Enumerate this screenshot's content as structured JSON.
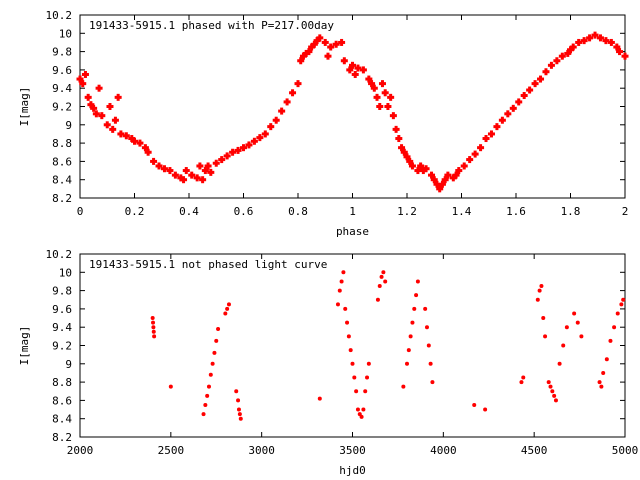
{
  "chart_data": [
    {
      "type": "scatter",
      "title": "191433-5915.1 phased with P=217.00day",
      "xlabel": "phase",
      "ylabel": "I[mag]",
      "xlim": [
        0,
        2
      ],
      "ylim": [
        10.2,
        8.2
      ],
      "y_inverted": true,
      "xticks": [
        0,
        0.2,
        0.4,
        0.6,
        0.8,
        1,
        1.2,
        1.4,
        1.6,
        1.8,
        2
      ],
      "xtick_labels": [
        "0",
        "0.2",
        "0.4",
        "0.6",
        "0.8",
        "1",
        "1.2",
        "1.4",
        "1.6",
        "1.8",
        "2"
      ],
      "yticks": [
        8.2,
        8.4,
        8.6,
        8.8,
        9,
        9.2,
        9.4,
        9.6,
        9.8,
        10,
        10.2
      ],
      "ytick_labels": [
        "8.2",
        "8.4",
        "8.6",
        "8.8",
        "9",
        "9.2",
        "9.4",
        "9.6",
        "9.8",
        "10",
        "10.2"
      ],
      "grid": false,
      "marker_color": "#ff0000",
      "marker": "plus-thick",
      "series": [
        {
          "x": [
            0.0,
            0.01,
            0.02,
            0.03,
            0.04,
            0.05,
            0.06,
            0.07,
            0.08,
            0.1,
            0.11,
            0.12,
            0.13,
            0.14,
            0.15,
            0.17,
            0.19,
            0.2,
            0.22,
            0.24,
            0.25,
            0.27,
            0.29,
            0.31,
            0.33,
            0.35,
            0.37,
            0.38,
            0.39,
            0.41,
            0.43,
            0.44,
            0.45,
            0.46,
            0.47,
            0.48,
            0.5,
            0.52,
            0.54,
            0.56,
            0.58,
            0.6,
            0.62,
            0.64,
            0.66,
            0.68,
            0.7,
            0.72,
            0.74,
            0.76,
            0.78,
            0.8,
            0.81,
            0.82,
            0.83,
            0.84,
            0.85,
            0.86,
            0.87,
            0.88,
            0.9,
            0.91,
            0.92,
            0.94,
            0.96,
            0.97,
            0.99,
            1.0,
            1.01,
            1.02,
            1.04,
            1.06,
            1.07,
            1.08,
            1.09,
            1.1,
            1.11,
            1.12,
            1.13,
            1.14,
            1.15,
            1.16,
            1.17,
            1.18,
            1.19,
            1.2,
            1.21,
            1.22,
            1.24,
            1.25,
            1.26,
            1.27,
            1.29,
            1.3,
            1.31,
            1.32,
            1.33,
            1.34,
            1.35,
            1.37,
            1.38,
            1.39,
            1.41,
            1.43,
            1.45,
            1.47,
            1.49,
            1.51,
            1.53,
            1.55,
            1.57,
            1.59,
            1.61,
            1.63,
            1.65,
            1.67,
            1.69,
            1.71,
            1.73,
            1.75,
            1.77,
            1.79,
            1.8,
            1.81,
            1.83,
            1.85,
            1.87,
            1.89,
            1.91,
            1.93,
            1.95,
            1.97,
            1.98,
            2.0
          ],
          "y": [
            9.5,
            9.45,
            9.55,
            9.3,
            9.22,
            9.18,
            9.12,
            9.4,
            9.1,
            9.0,
            9.2,
            8.95,
            9.05,
            9.3,
            8.9,
            8.88,
            8.85,
            8.82,
            8.8,
            8.75,
            8.7,
            8.6,
            8.55,
            8.52,
            8.5,
            8.45,
            8.42,
            8.4,
            8.5,
            8.45,
            8.42,
            8.55,
            8.4,
            8.5,
            8.55,
            8.48,
            8.58,
            8.62,
            8.66,
            8.7,
            8.72,
            8.75,
            8.78,
            8.82,
            8.86,
            8.9,
            8.98,
            9.05,
            9.15,
            9.25,
            9.35,
            9.45,
            9.7,
            9.75,
            9.78,
            9.8,
            9.85,
            9.88,
            9.92,
            9.95,
            9.9,
            9.75,
            9.85,
            9.88,
            9.9,
            9.7,
            9.6,
            9.65,
            9.55,
            9.62,
            9.6,
            9.5,
            9.45,
            9.4,
            9.3,
            9.2,
            9.45,
            9.35,
            9.2,
            9.3,
            9.1,
            8.95,
            8.85,
            8.75,
            8.7,
            8.65,
            8.6,
            8.55,
            8.5,
            8.55,
            8.5,
            8.52,
            8.45,
            8.4,
            8.35,
            8.3,
            8.35,
            8.4,
            8.45,
            8.42,
            8.45,
            8.5,
            8.55,
            8.62,
            8.68,
            8.75,
            8.85,
            8.9,
            8.98,
            9.05,
            9.12,
            9.18,
            9.25,
            9.32,
            9.38,
            9.45,
            9.5,
            9.58,
            9.65,
            9.7,
            9.75,
            9.78,
            9.82,
            9.85,
            9.9,
            9.92,
            9.95,
            9.98,
            9.95,
            9.92,
            9.9,
            9.85,
            9.8,
            9.75
          ]
        }
      ]
    },
    {
      "type": "scatter",
      "title": "191433-5915.1 not phased light curve",
      "xlabel": "hjd0",
      "ylabel": "I[mag]",
      "xlim": [
        2000,
        5000
      ],
      "ylim": [
        10.2,
        8.2
      ],
      "y_inverted": true,
      "xticks": [
        2000,
        2500,
        3000,
        3500,
        4000,
        4500,
        5000
      ],
      "xtick_labels": [
        "2000",
        "2500",
        "3000",
        "3500",
        "4000",
        "4500",
        "5000"
      ],
      "yticks": [
        8.2,
        8.4,
        8.6,
        8.8,
        9,
        9.2,
        9.4,
        9.6,
        9.8,
        10,
        10.2
      ],
      "ytick_labels": [
        "8.2",
        "8.4",
        "8.6",
        "8.8",
        "9",
        "9.2",
        "9.4",
        "9.6",
        "9.8",
        "10",
        "10.2"
      ],
      "grid": false,
      "marker_color": "#ff0000",
      "marker": "dot",
      "series": [
        {
          "x": [
            2400,
            2402,
            2404,
            2406,
            2408,
            2500,
            2680,
            2690,
            2700,
            2710,
            2720,
            2730,
            2740,
            2750,
            2760,
            2800,
            2810,
            2820,
            2860,
            2870,
            2875,
            2880,
            2885,
            3320,
            3420,
            3430,
            3440,
            3450,
            3460,
            3470,
            3480,
            3490,
            3500,
            3510,
            3520,
            3530,
            3540,
            3550,
            3560,
            3570,
            3580,
            3590,
            3640,
            3650,
            3660,
            3670,
            3680,
            3780,
            3800,
            3810,
            3820,
            3830,
            3840,
            3850,
            3860,
            3900,
            3910,
            3920,
            3930,
            3940,
            4170,
            4230,
            4430,
            4440,
            4520,
            4530,
            4540,
            4550,
            4560,
            4580,
            4590,
            4600,
            4610,
            4620,
            4640,
            4660,
            4680,
            4720,
            4740,
            4760,
            4860,
            4870,
            4880,
            4900,
            4920,
            4940,
            4960,
            4980,
            4990
          ],
          "y": [
            9.5,
            9.45,
            9.4,
            9.35,
            9.3,
            8.75,
            8.45,
            8.55,
            8.65,
            8.75,
            8.88,
            9.0,
            9.12,
            9.25,
            9.38,
            9.55,
            9.6,
            9.65,
            8.7,
            8.6,
            8.5,
            8.45,
            8.4,
            8.62,
            9.65,
            9.8,
            9.9,
            10.0,
            9.6,
            9.45,
            9.3,
            9.15,
            9.0,
            8.85,
            8.7,
            8.5,
            8.45,
            8.42,
            8.5,
            8.7,
            8.85,
            9.0,
            9.7,
            9.85,
            9.95,
            10.0,
            9.9,
            8.75,
            9.0,
            9.15,
            9.3,
            9.45,
            9.6,
            9.75,
            9.9,
            9.6,
            9.4,
            9.2,
            9.0,
            8.8,
            8.55,
            8.5,
            8.8,
            8.85,
            9.7,
            9.8,
            9.85,
            9.5,
            9.3,
            8.8,
            8.75,
            8.7,
            8.65,
            8.6,
            9.0,
            9.2,
            9.4,
            9.55,
            9.45,
            9.3,
            8.8,
            8.75,
            8.9,
            9.05,
            9.25,
            9.4,
            9.55,
            9.65,
            9.7
          ]
        }
      ]
    }
  ]
}
